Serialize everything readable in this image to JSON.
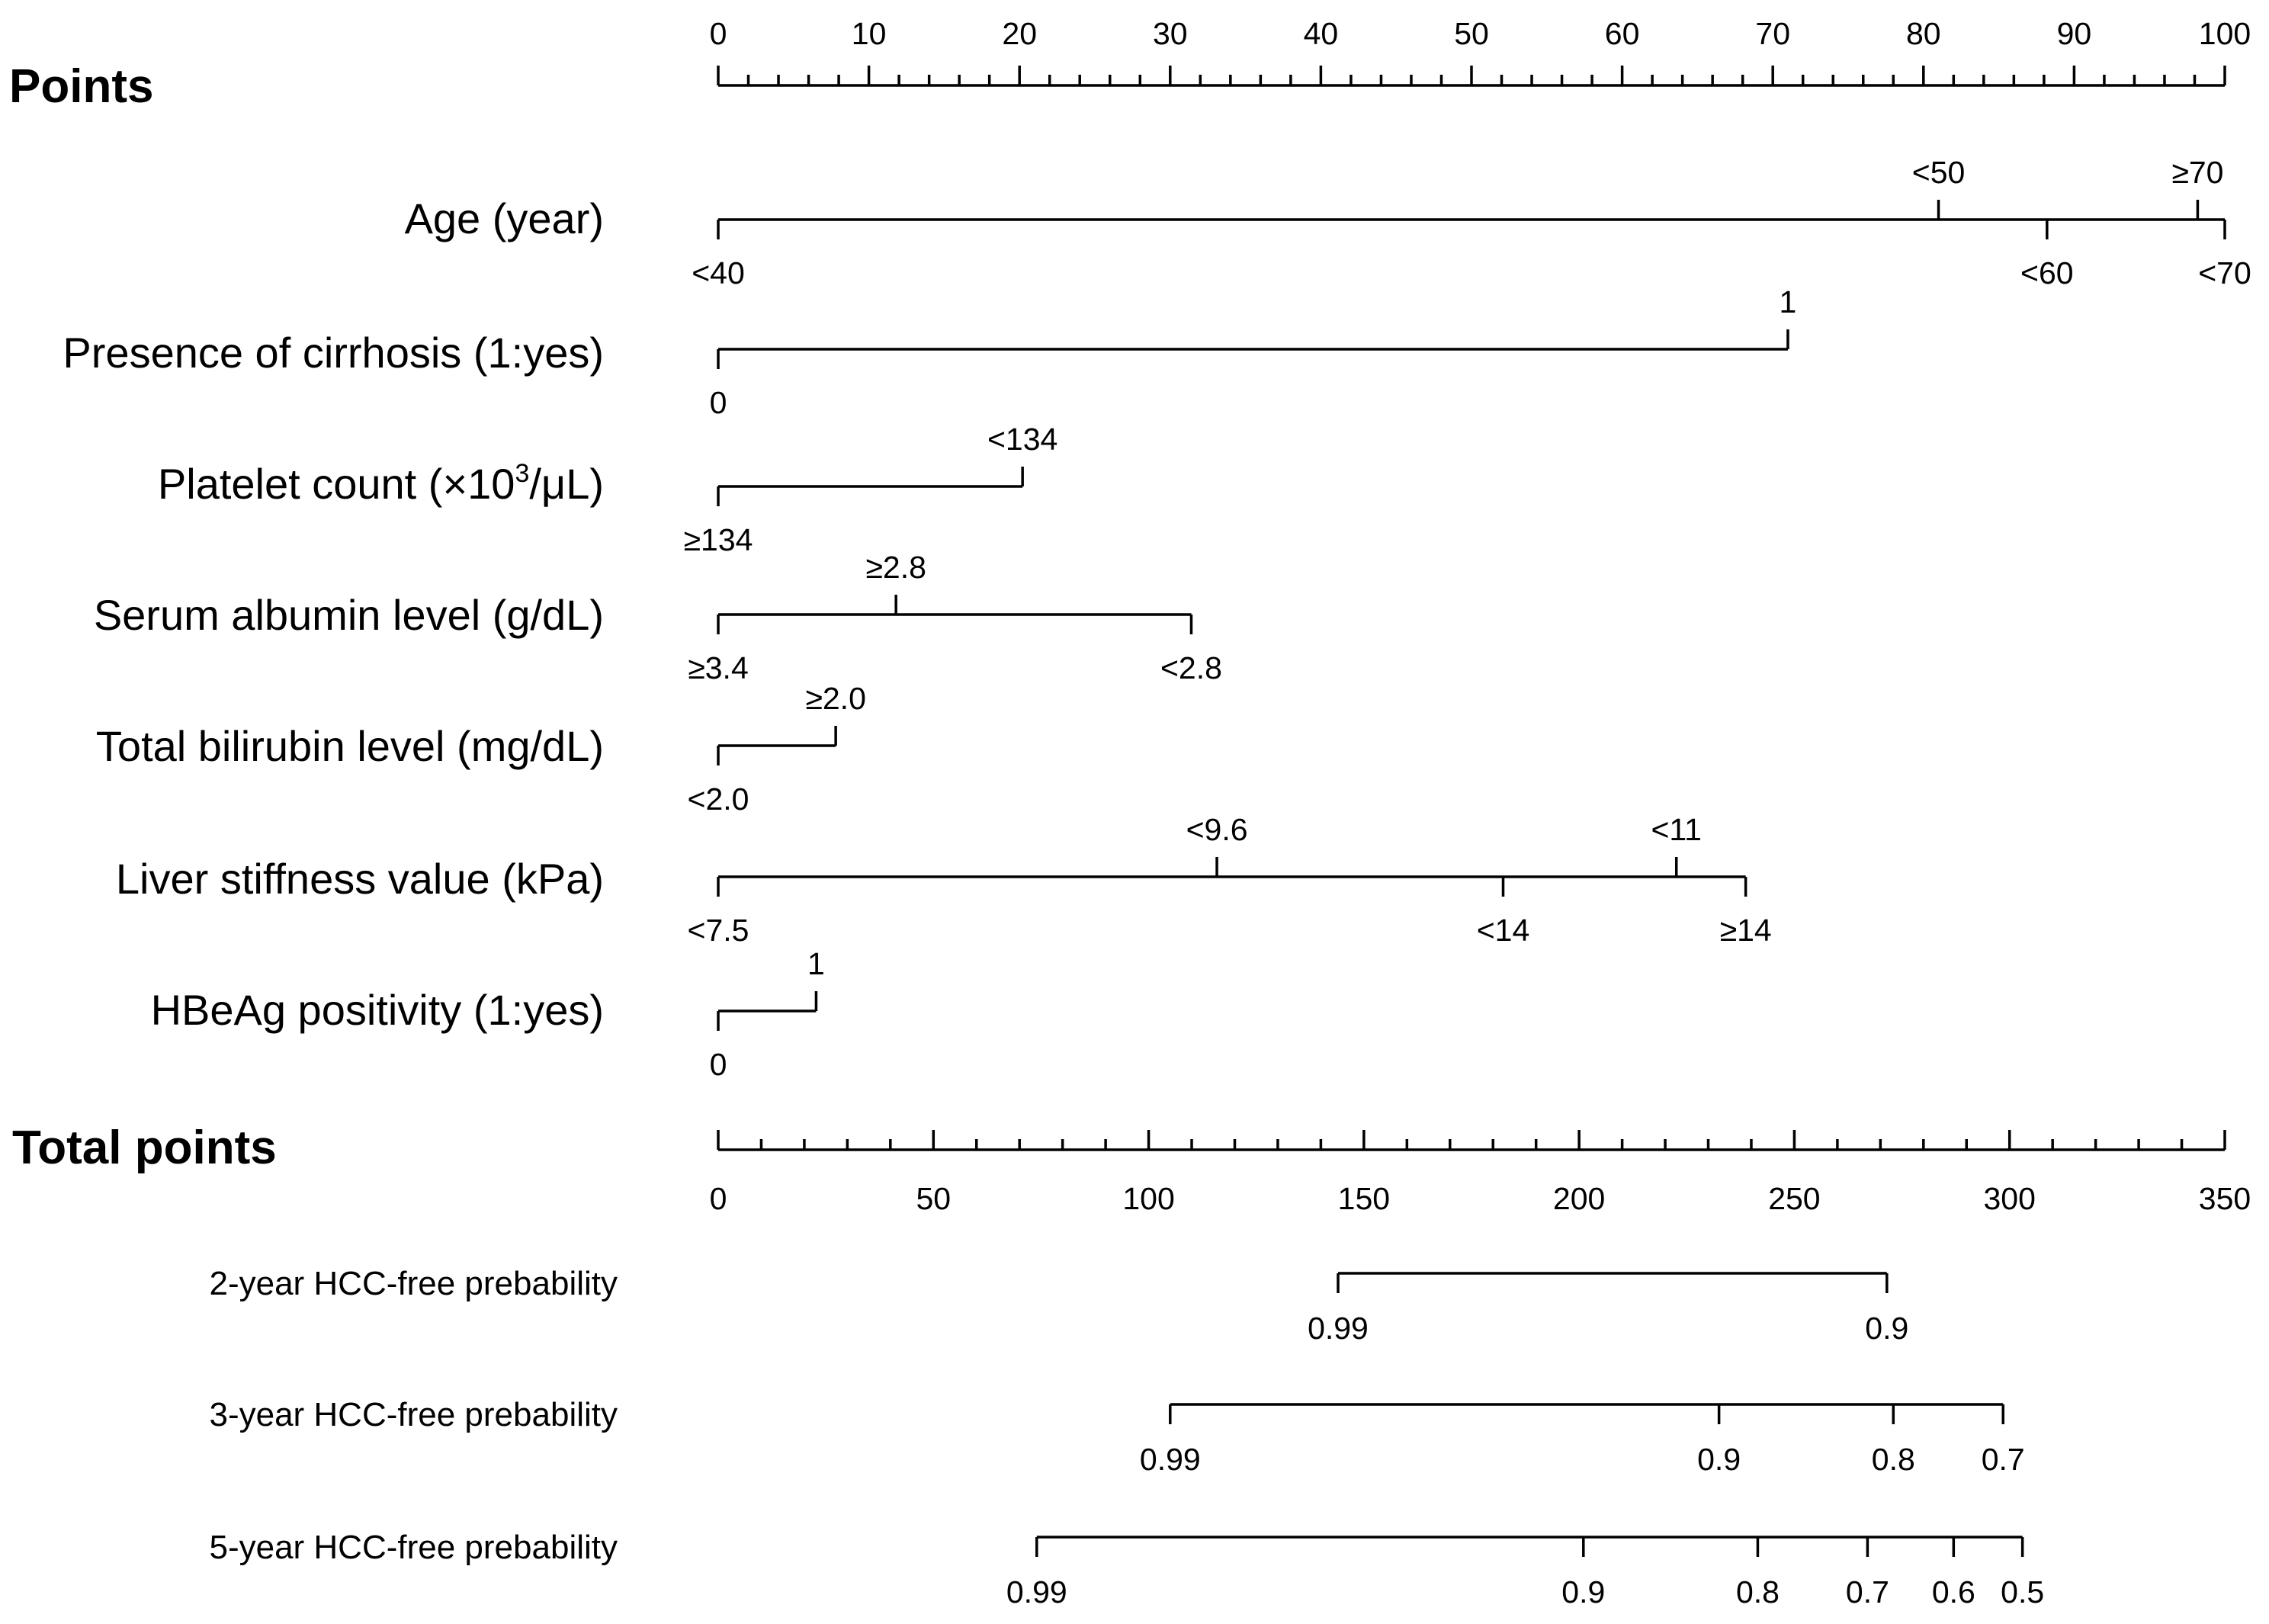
{
  "chart_data": {
    "type": "nomogram",
    "points_axis": {
      "label": "Points",
      "min": 0,
      "max": 100,
      "major_ticks": [
        0,
        10,
        20,
        30,
        40,
        50,
        60,
        70,
        80,
        90,
        100
      ],
      "minor_step": 2
    },
    "variables": [
      {
        "label": "Age (year)",
        "ticks": [
          {
            "label": "<40",
            "points": 0,
            "side": "below"
          },
          {
            "label": "<50",
            "points": 81,
            "side": "above"
          },
          {
            "label": "<60",
            "points": 88.2,
            "side": "below"
          },
          {
            "label": "≥70",
            "points": 98.2,
            "side": "above"
          },
          {
            "label": "<70",
            "points": 100,
            "side": "below"
          }
        ]
      },
      {
        "label": "Presence of cirrhosis (1:yes)",
        "ticks": [
          {
            "label": "0",
            "points": 0,
            "side": "below"
          },
          {
            "label": "1",
            "points": 71,
            "side": "above"
          }
        ]
      },
      {
        "label_prefix": "Platelet count (×10",
        "label_sup": "3",
        "label_suffix": "/μL)",
        "ticks": [
          {
            "label": "≥134",
            "points": 0,
            "side": "below"
          },
          {
            "label": "<134",
            "points": 20.2,
            "side": "above"
          }
        ]
      },
      {
        "label": "Serum albumin level (g/dL)",
        "ticks": [
          {
            "label": "≥3.4",
            "points": 0,
            "side": "below"
          },
          {
            "label": "≥2.8",
            "points": 11.8,
            "side": "above"
          },
          {
            "label": "<2.8",
            "points": 31.4,
            "side": "below"
          }
        ]
      },
      {
        "label": "Total bilirubin level (mg/dL)",
        "ticks": [
          {
            "label": "<2.0",
            "points": 0,
            "side": "below"
          },
          {
            "label": "≥2.0",
            "points": 7.8,
            "side": "above"
          }
        ]
      },
      {
        "label": "Liver stiffness value (kPa)",
        "ticks": [
          {
            "label": "<7.5",
            "points": 0,
            "side": "below"
          },
          {
            "label": "<9.6",
            "points": 33.1,
            "side": "above"
          },
          {
            "label": "<14",
            "points": 52.1,
            "side": "below"
          },
          {
            "label": "<11",
            "points": 63.6,
            "side": "above"
          },
          {
            "label": "≥14",
            "points": 68.2,
            "side": "below"
          }
        ]
      },
      {
        "label": "HBeAg positivity (1:yes)",
        "ticks": [
          {
            "label": "0",
            "points": 0,
            "side": "below"
          },
          {
            "label": "1",
            "points": 6.5,
            "side": "above"
          }
        ]
      }
    ],
    "total_points_axis": {
      "label": "Total points",
      "min": 0,
      "max": 350,
      "major_ticks": [
        0,
        50,
        100,
        150,
        200,
        250,
        300,
        350
      ],
      "minor_step": 10
    },
    "probability_scales": [
      {
        "label": "2-year HCC-free prebability",
        "ticks": [
          {
            "label": "0.99",
            "total_points": 144
          },
          {
            "label": "0.9",
            "total_points": 271.5
          }
        ]
      },
      {
        "label": "3-year HCC-free prebability",
        "ticks": [
          {
            "label": "0.99",
            "total_points": 105
          },
          {
            "label": "0.9",
            "total_points": 232.5
          },
          {
            "label": "0.8",
            "total_points": 273
          },
          {
            "label": "0.7",
            "total_points": 298.5
          }
        ]
      },
      {
        "label": "5-year HCC-free prebability",
        "ticks": [
          {
            "label": "0.99",
            "total_points": 74
          },
          {
            "label": "0.9",
            "total_points": 201
          },
          {
            "label": "0.8",
            "total_points": 241.5
          },
          {
            "label": "0.7",
            "total_points": 267
          },
          {
            "label": "0.6",
            "total_points": 287
          },
          {
            "label": "0.5",
            "total_points": 303
          }
        ]
      }
    ]
  }
}
